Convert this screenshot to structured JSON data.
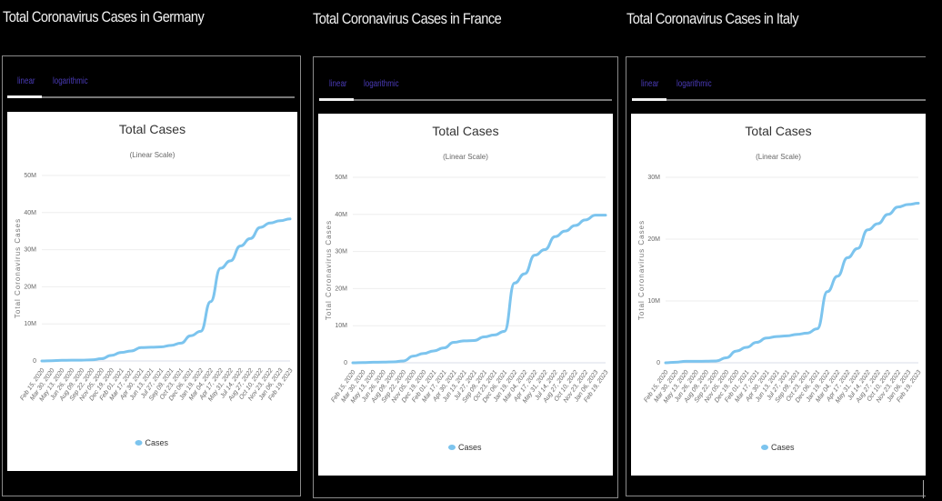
{
  "panels": [
    {
      "country_title": "Total Coronavirus Cases in Germany",
      "tabs": [
        {
          "label": "linear",
          "active": true
        },
        {
          "label": "logarithmic",
          "active": false
        }
      ],
      "chart_data": {
        "type": "line",
        "title": "Total Cases",
        "subtitle": "(Linear Scale)",
        "ylabel": "Total Coronavirus Cases",
        "xlabel": "",
        "ylim": [
          0,
          50000000
        ],
        "yticks": [
          0,
          10000000,
          20000000,
          30000000,
          40000000,
          50000000
        ],
        "ytick_labels": [
          "0",
          "10M",
          "20M",
          "30M",
          "40M",
          "50M"
        ],
        "x_tick_labels": [
          "Feb 15, 2020",
          "Mar 30, 2020",
          "May 13, 2020",
          "Jun 26, 2020",
          "Aug 09, 2020",
          "Sep 22, 2020",
          "Nov 05, 2020",
          "Dec 19, 2020",
          "Feb 01, 2021",
          "Mar 17, 2021",
          "Apr 30, 2021",
          "Jun 13, 2021",
          "Jul 27, 2021",
          "Sep 09, 2021",
          "Oct 23, 2021",
          "Dec 06, 2021",
          "Jan 19, 2022",
          "Mar 04, 2022",
          "Apr 17, 2022",
          "May 31, 2022",
          "Jul 14, 2022",
          "Aug 27, 2022",
          "Oct 10, 2022",
          "Nov 23, 2022",
          "Jan 06, 2023",
          "Feb 19, 2023"
        ],
        "grid": true,
        "legend": {
          "position": "bottom",
          "entries": [
            "Cases"
          ]
        },
        "series": [
          {
            "name": "Cases",
            "color": "#7cc4ee",
            "values": [
              0,
              0.07,
              0.18,
              0.2,
              0.22,
              0.3,
              0.6,
              1.5,
              2.3,
              2.7,
              3.6,
              3.7,
              3.8,
              4.2,
              4.8,
              6.8,
              8.0,
              16.0,
              25.0,
              27.0,
              31.0,
              33.0,
              36.0,
              37.2,
              37.8,
              38.3
            ]
          }
        ]
      }
    },
    {
      "country_title": "Total Coronavirus Cases in France",
      "tabs": [
        {
          "label": "linear",
          "active": true
        },
        {
          "label": "logarithmic",
          "active": false
        }
      ],
      "chart_data": {
        "type": "line",
        "title": "Total Cases",
        "subtitle": "(Linear Scale)",
        "ylabel": "Total Coronavirus Cases",
        "xlabel": "",
        "ylim": [
          0,
          50000000
        ],
        "yticks": [
          0,
          10000000,
          20000000,
          30000000,
          40000000,
          50000000
        ],
        "ytick_labels": [
          "0",
          "10M",
          "20M",
          "30M",
          "40M",
          "50M"
        ],
        "x_tick_labels": [
          "Feb 15, 2020",
          "Mar 30, 2020",
          "May 13, 2020",
          "Jun 26, 2020",
          "Aug 09, 2020",
          "Sep 22, 2020",
          "Nov 05, 2020",
          "Dec 19, 2020",
          "Feb 01, 2021",
          "Mar 17, 2021",
          "Apr 30, 2021",
          "Jun 13, 2021",
          "Jul 27, 2021",
          "Sep 09, 2021",
          "Oct 23, 2021",
          "Dec 06, 2021",
          "Jan 19, 2022",
          "Mar 04, 2022",
          "Apr 17, 2022",
          "May 31, 2022",
          "Jul 14, 2022",
          "Aug 27, 2022",
          "Oct 10, 2022",
          "Nov 23, 2022",
          "Jan 06, 2023",
          "Feb 19, 2023"
        ],
        "grid": true,
        "legend": {
          "position": "bottom",
          "entries": [
            "Cases"
          ]
        },
        "series": [
          {
            "name": "Cases",
            "color": "#7cc4ee",
            "values": [
              0,
              0.05,
              0.15,
              0.17,
              0.25,
              0.5,
              1.8,
              2.5,
              3.2,
              4.0,
              5.5,
              5.9,
              6.0,
              7.0,
              7.5,
              8.5,
              21.5,
              24.0,
              29.0,
              30.5,
              34.0,
              35.5,
              37.0,
              38.5,
              39.8,
              39.8
            ]
          }
        ]
      }
    },
    {
      "country_title": "Total Coronavirus Cases in Italy",
      "tabs": [
        {
          "label": "linear",
          "active": true
        },
        {
          "label": "logarithmic",
          "active": false
        }
      ],
      "chart_data": {
        "type": "line",
        "title": "Total Cases",
        "subtitle": "(Linear Scale)",
        "ylabel": "Total Coronavirus Cases",
        "xlabel": "",
        "ylim": [
          0,
          30000000
        ],
        "yticks": [
          0,
          10000000,
          20000000,
          30000000
        ],
        "ytick_labels": [
          "0",
          "10M",
          "20M",
          "30M"
        ],
        "x_tick_labels": [
          "Feb 15, 2020",
          "Mar 30, 2020",
          "May 13, 2020",
          "Jun 26, 2020",
          "Aug 09, 2020",
          "Sep 22, 2020",
          "Nov 05, 2020",
          "Dec 19, 2020",
          "Feb 01, 2021",
          "Mar 17, 2021",
          "Apr 30, 2021",
          "Jun 13, 2021",
          "Jul 27, 2021",
          "Sep 09, 2021",
          "Oct 23, 2021",
          "Dec 06, 2021",
          "Jan 19, 2022",
          "Mar 04, 2022",
          "Apr 17, 2022",
          "May 31, 2022",
          "Jul 14, 2022",
          "Aug 27, 2022",
          "Oct 10, 2022",
          "Nov 23, 2022",
          "Jan 06, 2023",
          "Feb 19, 2023"
        ],
        "grid": true,
        "legend": {
          "position": "bottom",
          "entries": [
            "Cases"
          ]
        },
        "series": [
          {
            "name": "Cases",
            "color": "#7cc4ee",
            "values": [
              0,
              0.1,
              0.23,
              0.24,
              0.25,
              0.3,
              0.8,
              1.9,
              2.5,
              3.3,
              4.0,
              4.25,
              4.35,
              4.6,
              4.8,
              5.5,
              11.5,
              14.0,
              17.0,
              18.5,
              21.5,
              22.5,
              24.0,
              25.2,
              25.6,
              25.8
            ]
          }
        ]
      }
    }
  ]
}
